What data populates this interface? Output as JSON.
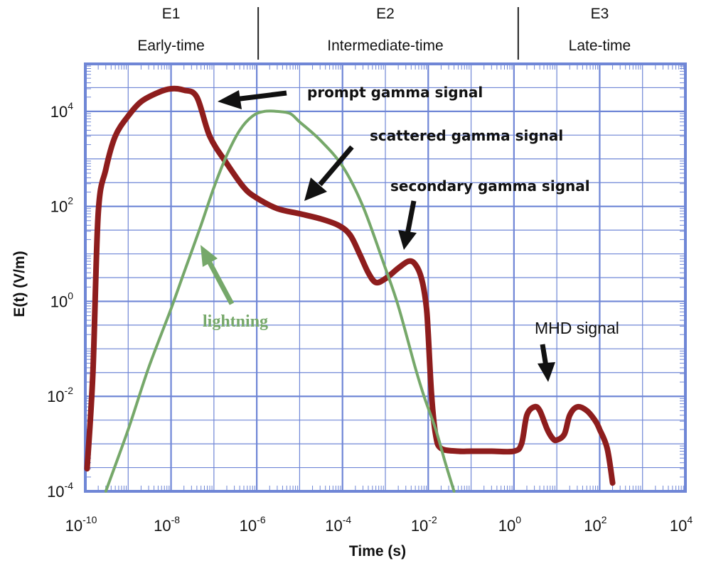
{
  "chart_data": {
    "type": "line",
    "title": "",
    "xlabel": "Time (s)",
    "ylabel": "E(t) (V/m)",
    "x_scale": "log",
    "y_scale": "log",
    "xlim": [
      1e-10,
      10000
    ],
    "ylim": [
      0.0001,
      100000
    ],
    "grid": true,
    "x_ticks": [
      {
        "base": "10",
        "exp": "-10",
        "value": 1e-10
      },
      {
        "base": "10",
        "exp": "-8",
        "value": 1e-08
      },
      {
        "base": "10",
        "exp": "-6",
        "value": 1e-06
      },
      {
        "base": "10",
        "exp": "-4",
        "value": 0.0001
      },
      {
        "base": "10",
        "exp": "-2",
        "value": 0.01
      },
      {
        "base": "10",
        "exp": "0",
        "value": 1
      },
      {
        "base": "10",
        "exp": "2",
        "value": 100
      },
      {
        "base": "10",
        "exp": "4",
        "value": 10000
      }
    ],
    "y_ticks": [
      {
        "base": "10",
        "exp": "4",
        "value": 10000
      },
      {
        "base": "10",
        "exp": "2",
        "value": 100
      },
      {
        "base": "10",
        "exp": "0",
        "value": 1
      },
      {
        "base": "10",
        "exp": "-2",
        "value": 0.01
      },
      {
        "base": "10",
        "exp": "-4",
        "value": 0.0001
      }
    ],
    "regions": [
      {
        "code": "E1",
        "name": "Early-time",
        "from": 1e-10,
        "to": 1e-06
      },
      {
        "code": "E2",
        "name": "Intermediate-time",
        "from": 1e-06,
        "to": 1
      },
      {
        "code": "E3",
        "name": "Late-time",
        "from": 1,
        "to": 10000
      }
    ],
    "series": [
      {
        "color": "#8e1d1d",
        "x": [
          1.1e-10,
          1.5e-10,
          2e-10,
          3e-10,
          5e-10,
          1e-09,
          2e-09,
          5e-09,
          1e-08,
          2e-08,
          4e-08,
          8e-08,
          2e-07,
          5e-07,
          1e-06,
          3e-06,
          1e-05,
          3e-05,
          8e-05,
          0.00015,
          0.00025,
          0.0004,
          0.0006,
          0.001,
          0.002,
          0.0035,
          0.005,
          0.007,
          0.009,
          0.01,
          0.012,
          0.015,
          0.02,
          0.05,
          0.1,
          0.3,
          1,
          1.5,
          2,
          3,
          4,
          6,
          8,
          10,
          15,
          20,
          30,
          50,
          80,
          100,
          150,
          200
        ],
        "y": [
          0.0003,
          0.03,
          70,
          600,
          3000,
          8000,
          16000,
          25000,
          30000,
          28000,
          20000,
          3000,
          800,
          250,
          150,
          90,
          70,
          55,
          40,
          25,
          10,
          4,
          2.5,
          3,
          5,
          7,
          6,
          3,
          0.8,
          0.2,
          0.01,
          0.0015,
          0.0008,
          0.0007,
          0.0007,
          0.0007,
          0.0007,
          0.001,
          0.004,
          0.006,
          0.005,
          0.002,
          0.0013,
          0.0012,
          0.0016,
          0.004,
          0.006,
          0.005,
          0.003,
          0.002,
          0.0008,
          0.00015
        ]
      },
      {
        "color": "#76a86a",
        "x": [
          3e-10,
          1e-09,
          3e-09,
          1e-08,
          2e-08,
          5e-08,
          1e-07,
          2e-07,
          4e-07,
          8e-07,
          1.5e-06,
          3e-06,
          6e-06,
          1e-05,
          3e-05,
          0.0001,
          0.0003,
          0.001,
          0.002,
          0.005,
          0.008,
          0.015,
          0.025,
          0.04
        ],
        "y": [
          0.0001,
          0.002,
          0.04,
          0.7,
          4,
          40,
          250,
          1200,
          4000,
          8000,
          10000,
          10000,
          9000,
          6000,
          2500,
          700,
          100,
          5,
          0.8,
          0.04,
          0.01,
          0.002,
          0.0004,
          0.0001
        ]
      }
    ],
    "annotations": [
      {
        "id": "prompt",
        "text": "prompt gamma signal"
      },
      {
        "id": "scattered",
        "text": "scattered gamma signal"
      },
      {
        "id": "secondary",
        "text": "secondary gamma signal"
      },
      {
        "id": "lightning",
        "text": "lightning",
        "color": "#76a86a"
      },
      {
        "id": "mhd",
        "text": "MHD signal"
      }
    ]
  }
}
